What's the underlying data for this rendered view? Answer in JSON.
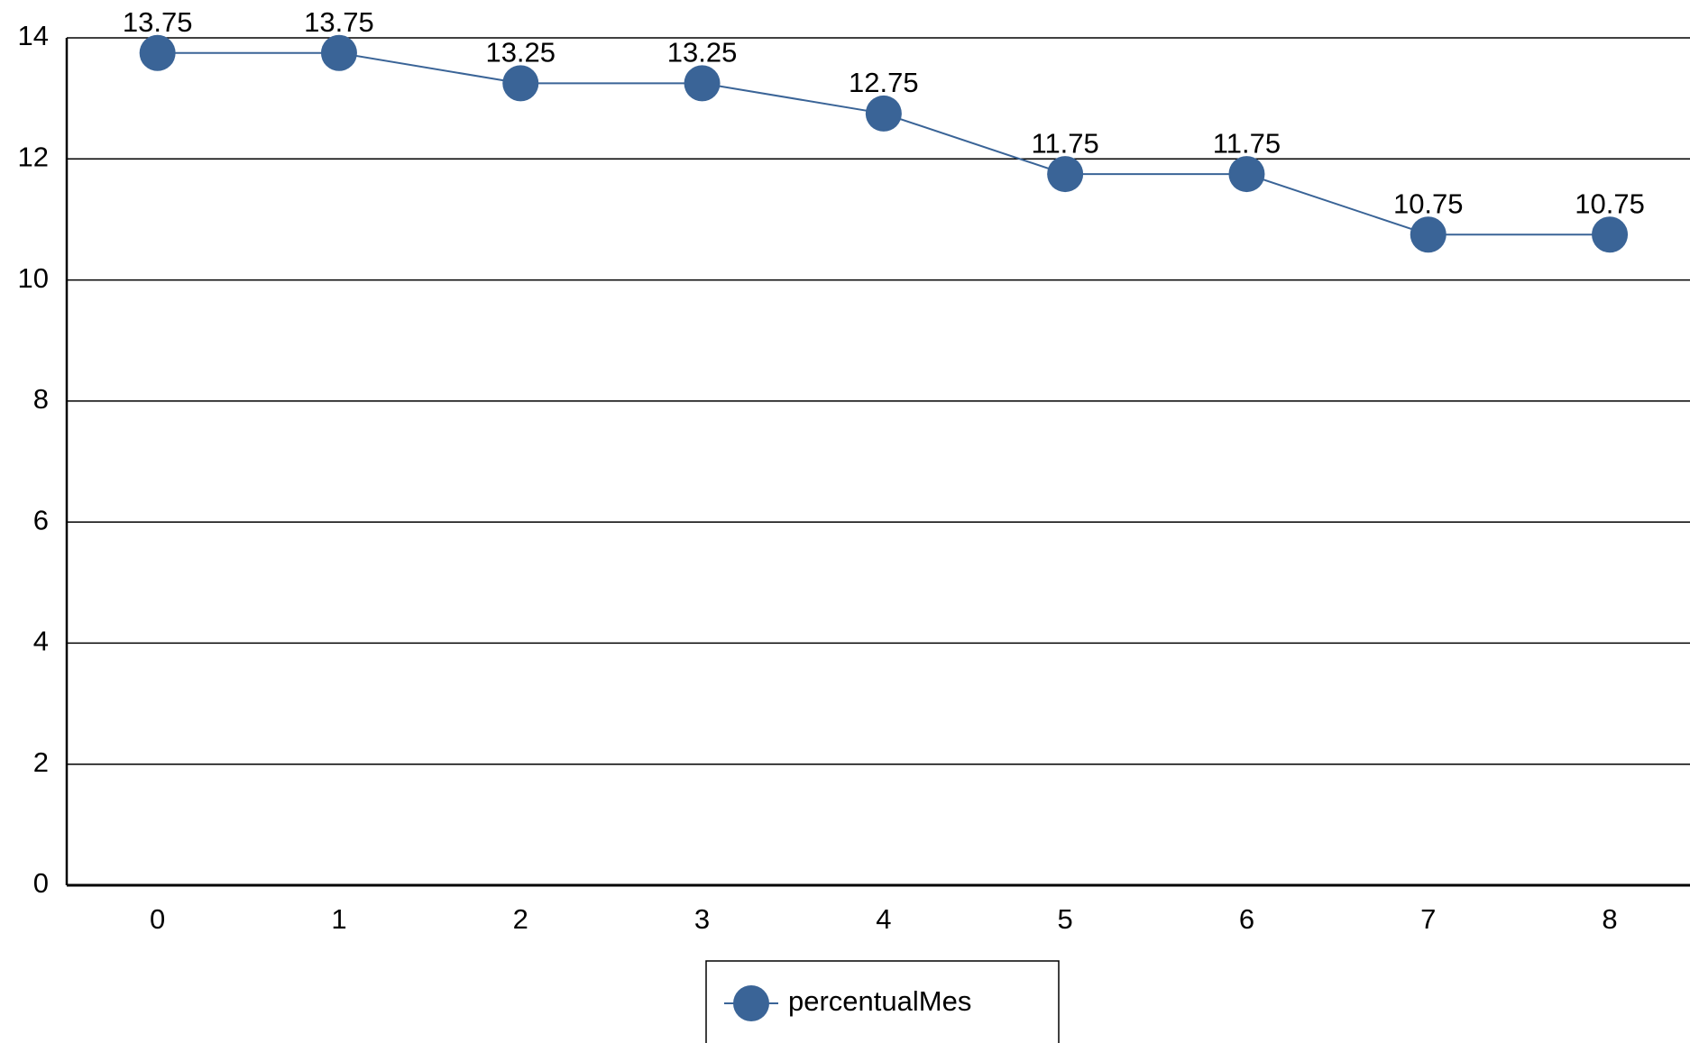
{
  "chart_data": {
    "type": "line",
    "categories": [
      "0",
      "1",
      "2",
      "3",
      "4",
      "5",
      "6",
      "7",
      "8"
    ],
    "series": [
      {
        "name": "percentualMes",
        "color": "#3a6497",
        "values": [
          13.75,
          13.75,
          13.25,
          13.25,
          12.75,
          11.75,
          11.75,
          10.75,
          10.75
        ]
      }
    ],
    "ylim": [
      0,
      14
    ],
    "yticks": [
      0,
      2,
      4,
      6,
      8,
      10,
      12,
      14
    ],
    "grid": true,
    "legend": "bottom"
  }
}
